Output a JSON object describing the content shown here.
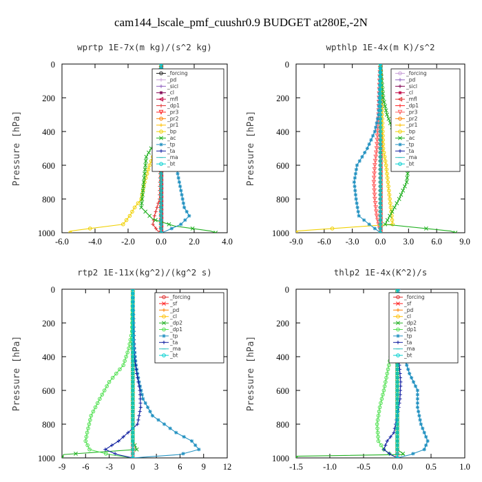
{
  "figure_title": "cam144_lscale_pmf_cuushr0.9  BUDGET at280E,-2N",
  "chart_data": [
    {
      "type": "line",
      "title": "wprtp  1E-7x(m kg)/(s^2 kg)",
      "ylabel": "Pressure [hPa]",
      "xlim": [
        -6.0,
        4.0
      ],
      "ylim": [
        1000,
        0
      ],
      "xticks": [
        "-6.0",
        "-4.0",
        "-2.0",
        "0.0",
        "2.0",
        "4.0"
      ],
      "xtick_values": [
        -6,
        -4,
        -2,
        0,
        2,
        4
      ],
      "yticks": [
        "0",
        "200",
        "400",
        "600",
        "800",
        "1000"
      ],
      "ytick_values": [
        0,
        200,
        400,
        600,
        800,
        1000
      ],
      "legend_position": "top-right",
      "series": [
        {
          "name": "_forcing",
          "color": "#222222",
          "marker": "o",
          "p": [
            0,
            1000
          ],
          "x": [
            0,
            0
          ]
        },
        {
          "name": "_pd",
          "color": "#c8a0d8",
          "marker": "+",
          "p": [
            0,
            1000
          ],
          "x": [
            0,
            0
          ]
        },
        {
          "name": "_sicl",
          "color": "#9060c0",
          "marker": "+",
          "p": [
            0,
            1000
          ],
          "x": [
            0,
            0
          ]
        },
        {
          "name": "_cl",
          "color": "#800050",
          "marker": "*",
          "p": [
            0,
            1000
          ],
          "x": [
            0,
            0
          ]
        },
        {
          "name": "_mfl",
          "color": "#c00040",
          "marker": "<",
          "p": [
            0,
            1000
          ],
          "x": [
            0,
            0
          ]
        },
        {
          "name": "_dp1",
          "color": "#e03030",
          "marker": "+",
          "p": [
            0,
            600,
            800,
            900,
            950,
            990,
            1000
          ],
          "x": [
            0,
            -0.05,
            -0.1,
            -0.4,
            -0.5,
            -0.2,
            0
          ]
        },
        {
          "name": "_pr3",
          "color": "#ff2020",
          "marker": "v",
          "p": [
            0,
            1000
          ],
          "x": [
            0,
            0
          ]
        },
        {
          "name": "_pr2",
          "color": "#ff8000",
          "marker": "o",
          "p": [
            0,
            1000
          ],
          "x": [
            0,
            0
          ]
        },
        {
          "name": "_pr1",
          "color": "#ffc000",
          "marker": "+",
          "p": [
            0,
            1000
          ],
          "x": [
            0,
            0
          ]
        },
        {
          "name": "_bp",
          "color": "#f0d000",
          "marker": "o",
          "p": [
            0,
            400,
            500,
            600,
            700,
            800,
            850,
            900,
            950,
            990,
            1000
          ],
          "x": [
            0,
            -0.05,
            -0.3,
            -0.7,
            -1.0,
            -1.2,
            -1.6,
            -1.9,
            -2.3,
            -5.5,
            -5.5
          ]
        },
        {
          "name": "_ac",
          "color": "#20b020",
          "marker": "x",
          "p": [
            0,
            200,
            350,
            450,
            550,
            650,
            750,
            850,
            920,
            960,
            990,
            1000
          ],
          "x": [
            0,
            0.02,
            0.1,
            -0.3,
            -0.9,
            -1.0,
            -1.1,
            -1.2,
            -0.5,
            0.8,
            3.0,
            3.3
          ]
        },
        {
          "name": "_tp",
          "color": "#2090c0",
          "marker": "*",
          "p": [
            0,
            350,
            450,
            550,
            650,
            750,
            850,
            900,
            950,
            990,
            1000
          ],
          "x": [
            0,
            0.1,
            0.4,
            0.8,
            1.0,
            1.2,
            1.4,
            1.7,
            1.2,
            0.3,
            0
          ]
        },
        {
          "name": "_ta",
          "color": "#1020a0",
          "marker": "+",
          "p": [
            0,
            1000
          ],
          "x": [
            0,
            0
          ]
        },
        {
          "name": "_ma",
          "color": "#30c0c0",
          "marker": "-",
          "p": [
            0,
            1000
          ],
          "x": [
            0,
            0
          ]
        },
        {
          "name": "_bt",
          "color": "#00d0d0",
          "marker": "o",
          "p": [
            0,
            1000
          ],
          "x": [
            0,
            0
          ]
        }
      ]
    },
    {
      "type": "line",
      "title": "wpthlp  1E-4x(m K)/s^2",
      "ylabel": "Pressure [hPa]",
      "xlim": [
        -9.0,
        9.0
      ],
      "ylim": [
        1000,
        0
      ],
      "xticks": [
        "-9.0",
        "-6.0",
        "-3.0",
        "0.0",
        "3.0",
        "6.0",
        "9.0"
      ],
      "xtick_values": [
        -9,
        -6,
        -3,
        0,
        3,
        6,
        9
      ],
      "yticks": [
        "0",
        "200",
        "400",
        "600",
        "800",
        "1000"
      ],
      "ytick_values": [
        0,
        200,
        400,
        600,
        800,
        1000
      ],
      "legend_position": "top-right",
      "series": [
        {
          "name": "_forcing",
          "color": "#c8a0d8",
          "marker": "o",
          "p": [
            0,
            1000
          ],
          "x": [
            0,
            0
          ]
        },
        {
          "name": "_pd",
          "color": "#9060c0",
          "marker": "+",
          "p": [
            0,
            1000
          ],
          "x": [
            0,
            0
          ]
        },
        {
          "name": "_sicl",
          "color": "#800050",
          "marker": "+",
          "p": [
            0,
            1000
          ],
          "x": [
            0,
            0
          ]
        },
        {
          "name": "_cl",
          "color": "#c00040",
          "marker": "*",
          "p": [
            0,
            1000
          ],
          "x": [
            0,
            0
          ]
        },
        {
          "name": "_mfl",
          "color": "#e03030",
          "marker": "<",
          "p": [
            0,
            1000
          ],
          "x": [
            0,
            0
          ]
        },
        {
          "name": "_dp1",
          "color": "#ff2020",
          "marker": "+",
          "p": [
            0,
            1000
          ],
          "x": [
            0,
            0
          ]
        },
        {
          "name": "_pr3",
          "color": "#ff6060",
          "marker": "v",
          "p": [
            0,
            100,
            300,
            500,
            600,
            700,
            800,
            900,
            950,
            1000
          ],
          "x": [
            0,
            -0.1,
            -0.2,
            -0.4,
            -0.6,
            -0.7,
            -0.6,
            -0.4,
            -0.2,
            0
          ]
        },
        {
          "name": "_pr2",
          "color": "#ff8000",
          "marker": "o",
          "p": [
            0,
            1000
          ],
          "x": [
            0,
            0
          ]
        },
        {
          "name": "_pr1",
          "color": "#ffc000",
          "marker": "+",
          "p": [
            0,
            1000
          ],
          "x": [
            0,
            0
          ]
        },
        {
          "name": "_bp",
          "color": "#f0d000",
          "marker": "o",
          "p": [
            0,
            500,
            600,
            700,
            800,
            900,
            950,
            990,
            1000
          ],
          "x": [
            0,
            0.3,
            0.6,
            0.8,
            1.0,
            1.2,
            1.3,
            -9.0,
            -9.0
          ]
        },
        {
          "name": "_ac",
          "color": "#20b020",
          "marker": "x",
          "p": [
            0,
            200,
            300,
            400,
            500,
            600,
            700,
            800,
            900,
            950,
            990,
            1000
          ],
          "x": [
            0,
            0.3,
            0.7,
            1.4,
            2.3,
            3.0,
            2.8,
            2.0,
            1.0,
            0.5,
            7.5,
            8.0
          ]
        },
        {
          "name": "_tp",
          "color": "#2090c0",
          "marker": "*",
          "p": [
            0,
            300,
            400,
            500,
            600,
            700,
            800,
            900,
            950,
            1000
          ],
          "x": [
            0,
            -0.2,
            -0.6,
            -1.4,
            -2.5,
            -2.8,
            -2.6,
            -2.3,
            -1.2,
            0
          ]
        },
        {
          "name": "_ta",
          "color": "#1020a0",
          "marker": "+",
          "p": [
            0,
            1000
          ],
          "x": [
            0,
            0
          ]
        },
        {
          "name": "_ma",
          "color": "#30c0c0",
          "marker": "-",
          "p": [
            0,
            1000
          ],
          "x": [
            0,
            0
          ]
        },
        {
          "name": "_bt",
          "color": "#00d0d0",
          "marker": "o",
          "p": [
            0,
            1000
          ],
          "x": [
            0,
            0
          ]
        }
      ]
    },
    {
      "type": "line",
      "title": "rtp2  1E-11x(kg^2)/(kg^2 s)",
      "ylabel": "Pressure [hPa]",
      "xlim": [
        -9,
        12
      ],
      "ylim": [
        1000,
        0
      ],
      "xticks": [
        "-9",
        "-6",
        "-3",
        "0",
        "3",
        "6",
        "9",
        "12"
      ],
      "xtick_values": [
        -9,
        -6,
        -3,
        0,
        3,
        6,
        9,
        12
      ],
      "yticks": [
        "0",
        "200",
        "400",
        "600",
        "800",
        "1000"
      ],
      "ytick_values": [
        0,
        200,
        400,
        600,
        800,
        1000
      ],
      "legend_position": "top-right",
      "series": [
        {
          "name": "_forcing",
          "color": "#e03030",
          "marker": "o",
          "p": [
            0,
            1000
          ],
          "x": [
            0,
            0
          ]
        },
        {
          "name": "_sf",
          "color": "#ff2020",
          "marker": "x",
          "p": [
            0,
            1000
          ],
          "x": [
            0,
            0
          ]
        },
        {
          "name": "_pd",
          "color": "#ff8000",
          "marker": "+",
          "p": [
            0,
            1000
          ],
          "x": [
            0,
            0
          ]
        },
        {
          "name": "_cl",
          "color": "#ffc000",
          "marker": "o",
          "p": [
            0,
            1000
          ],
          "x": [
            0,
            0
          ]
        },
        {
          "name": "_dp2",
          "color": "#20b020",
          "marker": "x",
          "p": [
            0,
            900,
            950,
            980,
            1000
          ],
          "x": [
            0,
            0,
            0.5,
            -8.8,
            -9.0
          ]
        },
        {
          "name": "_dp1",
          "color": "#50e050",
          "marker": "o",
          "p": [
            0,
            250,
            350,
            450,
            550,
            650,
            750,
            850,
            900,
            950,
            980,
            1000
          ],
          "x": [
            0,
            -0.1,
            -0.5,
            -1.2,
            -3.0,
            -4.2,
            -5.3,
            -5.8,
            -6.0,
            -5.5,
            -3.0,
            0
          ]
        },
        {
          "name": "_tp",
          "color": "#2090c0",
          "marker": "*",
          "p": [
            0,
            300,
            450,
            550,
            650,
            750,
            850,
            900,
            950,
            980,
            1000
          ],
          "x": [
            0,
            0.1,
            0.4,
            0.8,
            1.3,
            2.5,
            5.5,
            7.5,
            8.4,
            6.0,
            0
          ]
        },
        {
          "name": "_ta",
          "color": "#1020a0",
          "marker": "+",
          "p": [
            0,
            400,
            500,
            600,
            700,
            800,
            900,
            950,
            980,
            1000
          ],
          "x": [
            0,
            0.2,
            0.5,
            0.9,
            1.0,
            0.6,
            -1.8,
            -3.5,
            -2.0,
            0
          ]
        },
        {
          "name": "_ma",
          "color": "#30c0c0",
          "marker": "-",
          "p": [
            0,
            1000
          ],
          "x": [
            0,
            0
          ]
        },
        {
          "name": "_bt",
          "color": "#00d0d0",
          "marker": "o",
          "p": [
            0,
            1000
          ],
          "x": [
            0,
            0
          ]
        }
      ]
    },
    {
      "type": "line",
      "title": "thlp2  1E-4x(K^2)/s",
      "ylabel": "Pressure [hPa]",
      "xlim": [
        -1.5,
        1.0
      ],
      "ylim": [
        1000,
        0
      ],
      "xticks": [
        "-1.5",
        "-1.0",
        "-0.5",
        "0.0",
        "0.5",
        "1.0"
      ],
      "xtick_values": [
        -1.5,
        -1.0,
        -0.5,
        0.0,
        0.5,
        1.0
      ],
      "yticks": [
        "0",
        "200",
        "400",
        "600",
        "800",
        "1000"
      ],
      "ytick_values": [
        0,
        200,
        400,
        600,
        800,
        1000
      ],
      "legend_position": "top-right",
      "series": [
        {
          "name": "_forcing",
          "color": "#e03030",
          "marker": "o",
          "p": [
            0,
            1000
          ],
          "x": [
            0,
            0
          ]
        },
        {
          "name": "_sf",
          "color": "#ff2020",
          "marker": "x",
          "p": [
            0,
            1000
          ],
          "x": [
            0,
            0
          ]
        },
        {
          "name": "_pd",
          "color": "#ff8000",
          "marker": "+",
          "p": [
            0,
            1000
          ],
          "x": [
            0,
            0
          ]
        },
        {
          "name": "_cl",
          "color": "#ffc000",
          "marker": "o",
          "p": [
            0,
            1000
          ],
          "x": [
            0,
            0
          ]
        },
        {
          "name": "_dp2",
          "color": "#20b020",
          "marker": "x",
          "p": [
            0,
            950,
            980,
            990,
            1000
          ],
          "x": [
            0,
            0,
            0.1,
            -1.5,
            -1.5
          ]
        },
        {
          "name": "_dp1",
          "color": "#50e050",
          "marker": "o",
          "p": [
            0,
            100,
            250,
            400,
            500,
            600,
            700,
            800,
            900,
            950,
            980,
            1000
          ],
          "x": [
            0,
            -0.02,
            -0.05,
            -0.1,
            -0.15,
            -0.2,
            -0.26,
            -0.3,
            -0.28,
            -0.2,
            -0.1,
            0
          ]
        },
        {
          "name": "_tp",
          "color": "#2090c0",
          "marker": "*",
          "p": [
            0,
            300,
            400,
            500,
            600,
            700,
            800,
            900,
            950,
            980,
            1000
          ],
          "x": [
            0.02,
            0.05,
            0.1,
            0.18,
            0.3,
            0.3,
            0.35,
            0.45,
            0.4,
            0.2,
            0
          ]
        },
        {
          "name": "_ta",
          "color": "#1020a0",
          "marker": "+",
          "p": [
            0,
            350,
            450,
            550,
            650,
            750,
            850,
            900,
            950,
            980,
            1000
          ],
          "x": [
            0,
            0,
            0.03,
            0.05,
            0.04,
            0,
            -0.05,
            -0.15,
            -0.2,
            -0.1,
            0
          ]
        },
        {
          "name": "_ma",
          "color": "#30c0c0",
          "marker": "-",
          "p": [
            0,
            1000
          ],
          "x": [
            0,
            0
          ]
        },
        {
          "name": "_bt",
          "color": "#00d0d0",
          "marker": "o",
          "p": [
            0,
            1000
          ],
          "x": [
            0,
            0
          ]
        }
      ]
    }
  ]
}
